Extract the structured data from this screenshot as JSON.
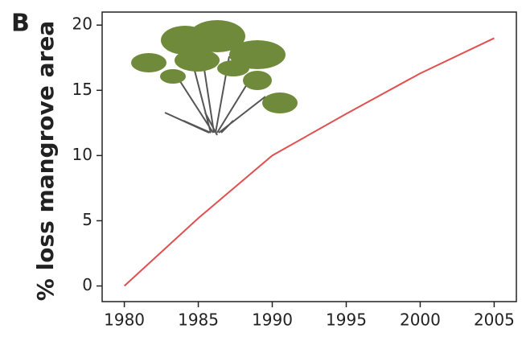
{
  "chart_data": {
    "type": "line",
    "panel_label": "B",
    "ylabel": "% loss mangrove area",
    "x": [
      1980,
      1985,
      1990,
      1995,
      2000,
      2005
    ],
    "series": [
      {
        "name": "% loss mangrove area",
        "color": "#e05050",
        "values": [
          0,
          5.2,
          10,
          13.2,
          16.3,
          19
        ]
      }
    ],
    "xlim": [
      1978.5,
      2006.5
    ],
    "xticks": [
      1980,
      1985,
      1990,
      1995,
      2000,
      2005
    ],
    "ylim": [
      -1.2,
      21
    ],
    "yticks": [
      0,
      5,
      10,
      15,
      20
    ]
  }
}
